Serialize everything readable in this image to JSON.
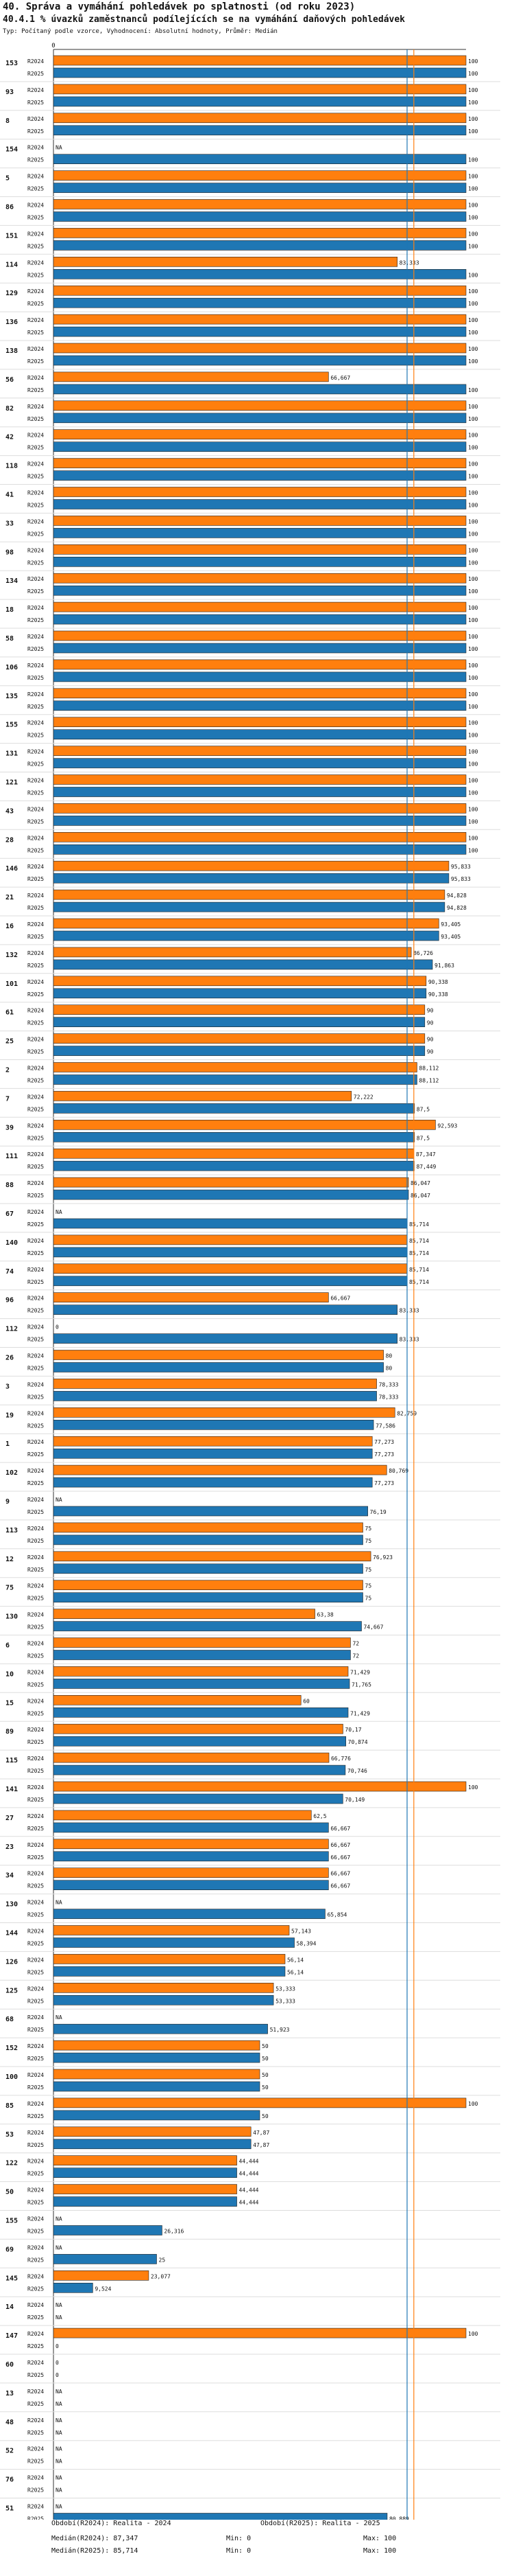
{
  "title": "40. Správa a vymáhání pohledávek po splatnosti (od roku 2023)",
  "subtitle": "40.4.1 % úvazků zaměstnanců podílejících se na vymáhání daňových pohledávek",
  "subnote": "Typ: Počítaný podle vzorce, Vyhodnocení: Absolutní hodnoty, Průměr: Medián",
  "colors": {
    "r2024": "#ff7f0e",
    "r2025": "#1f77b4",
    "median2024": "#ff7f0e",
    "median2025": "#1f77b4",
    "text": "#111111",
    "grid": "#dddddd"
  },
  "legend": {
    "period2024": "Období(R2024): Realita - 2024",
    "period2025": "Období(R2025): Realita - 2025",
    "median2024": "Medián(R2024): 87,347",
    "median2025": "Medián(R2025): 85,714",
    "min2024": "Min: 0",
    "min2025": "Min: 0",
    "max2024": "Max: 100",
    "max2025": "Max: 100"
  },
  "chart_data": {
    "type": "bar",
    "orientation": "horizontal",
    "title": "40.4.1 % úvazků zaměstnanců podílejících se na vymáhání daňových pohledávek",
    "xlim": [
      0,
      100
    ],
    "x_tick_labels": [
      "0"
    ],
    "series_names": [
      "R2024",
      "R2025"
    ],
    "na_label": "NA",
    "medians": {
      "R2024": 87.347,
      "R2025": 85.714
    },
    "groups": [
      {
        "id": "153",
        "v": [
          100,
          100
        ]
      },
      {
        "id": "93",
        "v": [
          100,
          100
        ]
      },
      {
        "id": "8",
        "v": [
          100,
          100
        ]
      },
      {
        "id": "154",
        "v": [
          null,
          100
        ]
      },
      {
        "id": "5",
        "v": [
          100,
          100
        ]
      },
      {
        "id": "86",
        "v": [
          100,
          100
        ]
      },
      {
        "id": "151",
        "v": [
          100,
          100
        ]
      },
      {
        "id": "114",
        "v": [
          83.333,
          100
        ]
      },
      {
        "id": "129",
        "v": [
          100,
          100
        ]
      },
      {
        "id": "136",
        "v": [
          100,
          100
        ]
      },
      {
        "id": "138",
        "v": [
          100,
          100
        ]
      },
      {
        "id": "56",
        "v": [
          66.667,
          100
        ]
      },
      {
        "id": "82",
        "v": [
          100,
          100
        ]
      },
      {
        "id": "42",
        "v": [
          100,
          100
        ]
      },
      {
        "id": "118",
        "v": [
          100,
          100
        ]
      },
      {
        "id": "41",
        "v": [
          100,
          100
        ]
      },
      {
        "id": "33",
        "v": [
          100,
          100
        ]
      },
      {
        "id": "98",
        "v": [
          100,
          100
        ]
      },
      {
        "id": "134",
        "v": [
          100,
          100
        ]
      },
      {
        "id": "18",
        "v": [
          100,
          100
        ]
      },
      {
        "id": "58",
        "v": [
          100,
          100
        ]
      },
      {
        "id": "106",
        "v": [
          100,
          100
        ]
      },
      {
        "id": "135",
        "v": [
          100,
          100
        ]
      },
      {
        "id": "155",
        "v": [
          100,
          100
        ]
      },
      {
        "id": "131",
        "v": [
          100,
          100
        ]
      },
      {
        "id": "121",
        "v": [
          100,
          100
        ]
      },
      {
        "id": "43",
        "v": [
          100,
          100
        ]
      },
      {
        "id": "28",
        "v": [
          100,
          100
        ]
      },
      {
        "id": "146",
        "v": [
          95.833,
          95.833
        ]
      },
      {
        "id": "21",
        "v": [
          94.828,
          94.828
        ]
      },
      {
        "id": "16",
        "v": [
          93.405,
          93.405
        ]
      },
      {
        "id": "132",
        "v": [
          86.726,
          91.863
        ]
      },
      {
        "id": "101",
        "v": [
          90.338,
          90.338
        ]
      },
      {
        "id": "61",
        "v": [
          90,
          90
        ]
      },
      {
        "id": "25",
        "v": [
          90,
          90
        ]
      },
      {
        "id": "2",
        "v": [
          88.112,
          88.112
        ]
      },
      {
        "id": "7",
        "v": [
          72.222,
          87.5
        ]
      },
      {
        "id": "39",
        "v": [
          92.593,
          87.5
        ]
      },
      {
        "id": "111",
        "v": [
          87.347,
          87.449
        ]
      },
      {
        "id": "88",
        "v": [
          86.047,
          86.047
        ]
      },
      {
        "id": "67",
        "v": [
          null,
          85.714
        ]
      },
      {
        "id": "140",
        "v": [
          85.714,
          85.714
        ]
      },
      {
        "id": "74",
        "v": [
          85.714,
          85.714
        ]
      },
      {
        "id": "96",
        "v": [
          66.667,
          83.333
        ]
      },
      {
        "id": "112",
        "v": [
          0,
          83.333
        ]
      },
      {
        "id": "26",
        "v": [
          80,
          80
        ]
      },
      {
        "id": "3",
        "v": [
          78.333,
          78.333
        ]
      },
      {
        "id": "19",
        "v": [
          82.759,
          77.586
        ]
      },
      {
        "id": "1",
        "v": [
          77.273,
          77.273
        ]
      },
      {
        "id": "102",
        "v": [
          80.769,
          77.273
        ]
      },
      {
        "id": "9",
        "v": [
          null,
          76.19
        ]
      },
      {
        "id": "113",
        "v": [
          75,
          75
        ]
      },
      {
        "id": "12",
        "v": [
          76.923,
          75
        ]
      },
      {
        "id": "75",
        "v": [
          75,
          75
        ]
      },
      {
        "id": "130",
        "v": [
          63.38,
          74.667
        ]
      },
      {
        "id": "6",
        "v": [
          72,
          72
        ]
      },
      {
        "id": "10",
        "v": [
          71.429,
          71.765
        ]
      },
      {
        "id": "15",
        "v": [
          60,
          71.429
        ]
      },
      {
        "id": "89",
        "v": [
          70.17,
          70.874
        ]
      },
      {
        "id": "115",
        "v": [
          66.776,
          70.746
        ]
      },
      {
        "id": "141",
        "v": [
          100,
          70.149
        ]
      },
      {
        "id": "27",
        "v": [
          62.5,
          66.667
        ]
      },
      {
        "id": "23",
        "v": [
          66.667,
          66.667
        ]
      },
      {
        "id": "34",
        "v": [
          66.667,
          66.667
        ]
      },
      {
        "id": "130",
        "v": [
          null,
          65.854
        ]
      },
      {
        "id": "144",
        "v": [
          57.143,
          58.394
        ]
      },
      {
        "id": "126",
        "v": [
          56.14,
          56.14
        ]
      },
      {
        "id": "125",
        "v": [
          53.333,
          53.333
        ]
      },
      {
        "id": "68",
        "v": [
          null,
          51.923
        ]
      },
      {
        "id": "152",
        "v": [
          50,
          50
        ]
      },
      {
        "id": "100",
        "v": [
          50,
          50
        ]
      },
      {
        "id": "85",
        "v": [
          100,
          50
        ]
      },
      {
        "id": "53",
        "v": [
          47.87,
          47.87
        ]
      },
      {
        "id": "122",
        "v": [
          44.444,
          44.444
        ]
      },
      {
        "id": "50",
        "v": [
          44.444,
          44.444
        ]
      },
      {
        "id": "155",
        "v": [
          null,
          26.316
        ]
      },
      {
        "id": "69",
        "v": [
          null,
          25
        ]
      },
      {
        "id": "145",
        "v": [
          23.077,
          9.524
        ]
      },
      {
        "id": "14",
        "v": [
          null,
          null
        ]
      },
      {
        "id": "147",
        "v": [
          100,
          0
        ]
      },
      {
        "id": "60",
        "v": [
          0,
          0
        ]
      },
      {
        "id": "13",
        "v": [
          null,
          null
        ]
      },
      {
        "id": "48",
        "v": [
          null,
          null
        ]
      },
      {
        "id": "52",
        "v": [
          null,
          null
        ]
      },
      {
        "id": "76",
        "v": [
          null,
          null
        ]
      },
      {
        "id": "51",
        "v": [
          null,
          80.889
        ]
      }
    ]
  }
}
